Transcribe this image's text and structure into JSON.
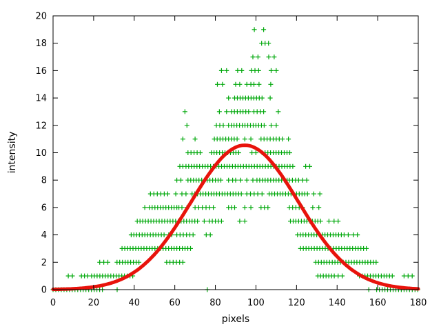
{
  "chart_data": {
    "type": "scatter",
    "title": "",
    "xlabel": "pixels",
    "ylabel": "intensity",
    "xlim": [
      0,
      180
    ],
    "ylim": [
      0,
      20
    ],
    "x_ticks": [
      0,
      20,
      40,
      60,
      80,
      100,
      120,
      140,
      160,
      180
    ],
    "y_ticks": [
      0,
      2,
      4,
      6,
      8,
      10,
      12,
      14,
      16,
      18,
      20
    ],
    "grid": false,
    "legend_position": "none",
    "background_color": "#ffffff",
    "axis_color": "#000000",
    "series": [
      {
        "name": "intensity-data-points",
        "type": "scatter",
        "marker": "plus",
        "marker_size": 7,
        "color": "#00a80b",
        "run_step": 1.35,
        "rows": [
          {
            "y": 0,
            "runs": [
              [
                0,
                24.5
              ],
              [
                159.5,
                180
              ]
            ],
            "singles": [
              31.6,
              76,
              155.6
            ]
          },
          {
            "y": 1,
            "runs": [
              [
                19,
                40
              ],
              [
                130.5,
                139
              ],
              [
                151,
                168.5
              ]
            ],
            "singles": [
              7.5,
              9.5,
              14,
              15.5,
              17,
              140.5,
              142.5,
              173,
              175,
              177
            ]
          },
          {
            "y": 2,
            "runs": [
              [
                31.5,
                43
              ],
              [
                56,
                64.5,
                1.6
              ],
              [
                129.5,
                160.5
              ]
            ],
            "singles": [
              23,
              25,
              27
            ]
          },
          {
            "y": 3,
            "runs": [
              [
                34,
                68
              ],
              [
                122,
                154.5
              ]
            ],
            "singles": []
          },
          {
            "y": 4,
            "runs": [
              [
                38.5,
                55
              ],
              [
                61,
                69,
                1.6
              ],
              [
                120.5,
                143.5
              ]
            ],
            "singles": [
              57,
              58.5,
              75.5,
              77.5,
              145.5,
              148,
              150
            ]
          },
          {
            "y": 5,
            "runs": [
              [
                41.5,
                72.5
              ],
              [
                77,
                83,
                1.5
              ],
              [
                117,
                132
              ]
            ],
            "singles": [
              74.5,
              92,
              94.5,
              136,
              138.5,
              140.5
            ]
          },
          {
            "y": 6,
            "runs": [
              [
                47.5,
                61
              ],
              [
                70,
                79,
                1.8
              ],
              [
                102.5,
                106,
                1.7
              ],
              [
                116.5,
                123,
                1.6
              ]
            ],
            "singles": [
              45.2,
              62,
              63.5,
              66,
              86.5,
              88,
              89.5,
              94.5,
              97.5,
              128,
              131
            ]
          },
          {
            "y": 7,
            "runs": [
              [
                48,
                56.5,
                1.7
              ],
              [
                68.5,
                94
              ],
              [
                95.5,
                101,
                1.8
              ],
              [
                106.5,
                125.5
              ]
            ],
            "singles": [
              60.5,
              63.5,
              65.5,
              103,
              128.5,
              131.5
            ]
          },
          {
            "y": 8,
            "runs": [
              [
                66.5,
                84
              ],
              [
                100.5,
                115.5
              ],
              [
                116.5,
                121,
                1.5
              ]
            ],
            "singles": [
              61,
              63,
              86.5,
              88.5,
              90,
              92.5,
              95.5,
              98.5,
              123,
              125
            ]
          },
          {
            "y": 9,
            "runs": [
              [
                65.5,
                118.5
              ]
            ],
            "singles": [
              62.5,
              64,
              124.5,
              126.5
            ]
          },
          {
            "y": 10,
            "runs": [
              [
                66.5,
                72.5,
                1.5
              ],
              [
                78,
                92.5
              ],
              [
                104.5,
                117.5
              ]
            ],
            "singles": [
              98,
              100,
              103
            ]
          },
          {
            "y": 11,
            "runs": [
              [
                79.5,
                91.5,
                1.4
              ],
              [
                102.5,
                113.5,
                1.5
              ]
            ],
            "singles": [
              64,
              70,
              94.5,
              97.5,
              116
            ]
          },
          {
            "y": 12,
            "runs": [
              [
                80.5,
                84,
                1.7
              ],
              [
                86.5,
                104.5
              ]
            ],
            "singles": [
              66,
              107.5,
              110
            ]
          },
          {
            "y": 13,
            "runs": [
              [
                88,
                96.5,
                1.4
              ],
              [
                99,
                104,
                1.6
              ]
            ],
            "singles": [
              65,
              82,
              85.5,
              111
            ]
          },
          {
            "y": 14,
            "runs": [
              [
                89.5,
                104
              ]
            ],
            "singles": [
              86.5,
              107
            ]
          },
          {
            "y": 15,
            "runs": [],
            "singles": [
              81,
              83.5,
              90,
              92,
              95.5,
              97.5,
              99,
              101.5,
              107.3
            ]
          },
          {
            "y": 16,
            "runs": [],
            "singles": [
              83,
              85.5,
              91,
              93,
              97.8,
              99.5,
              101.3,
              107.5,
              110
            ]
          },
          {
            "y": 17,
            "runs": [],
            "singles": [
              98.5,
              101,
              106.3,
              109
            ]
          },
          {
            "y": 18,
            "runs": [],
            "singles": [
              102.8,
              104.5,
              106.2
            ]
          },
          {
            "y": 19,
            "runs": [],
            "singles": [
              99.2,
              103.8
            ]
          }
        ]
      },
      {
        "name": "gaussian-fit-curve",
        "type": "line",
        "model": "gaussian",
        "amplitude": 10.55,
        "mean": 94.5,
        "sigma": 26.5,
        "color": "#e8130c",
        "linewidth": 5
      }
    ]
  }
}
